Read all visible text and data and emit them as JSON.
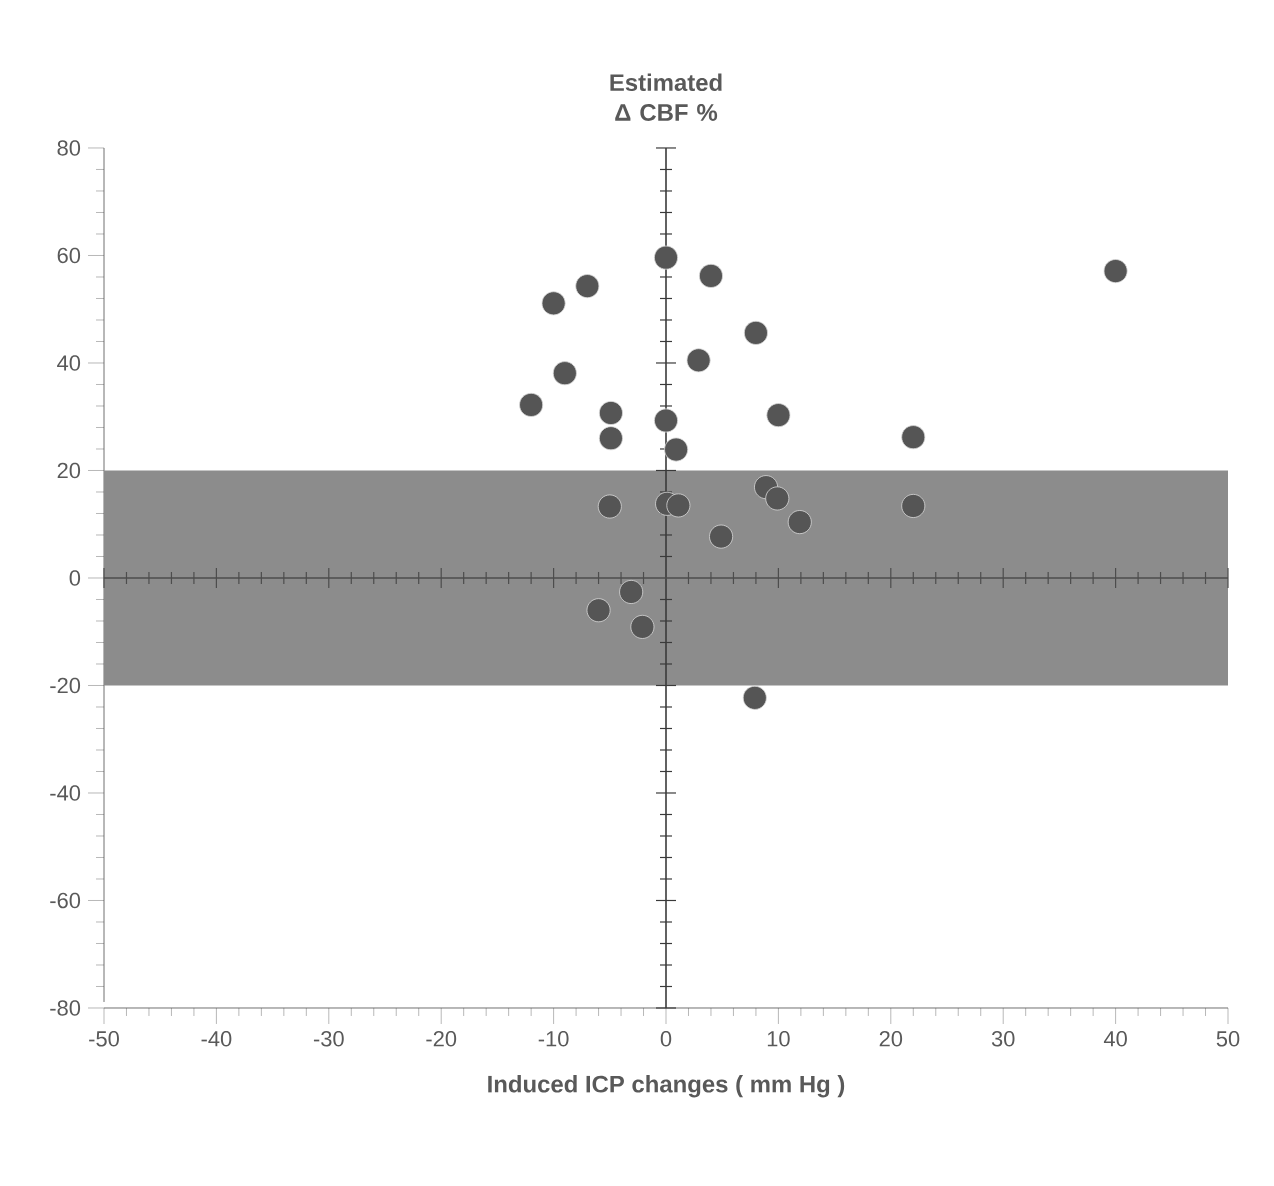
{
  "chart_data": {
    "type": "scatter",
    "ylabel": "Estimated Δ CBF %",
    "xlabel": "Induced ICP changes ( mm Hg )",
    "xlim": [
      -50,
      50
    ],
    "ylim": [
      -80,
      80
    ],
    "xticks": [
      -50,
      -40,
      -30,
      -20,
      -10,
      0,
      10,
      20,
      30,
      40,
      50
    ],
    "yticks": [
      -80,
      -60,
      -40,
      -20,
      0,
      20,
      40,
      60,
      80
    ],
    "marker": "circle",
    "grid": false,
    "bands": [
      {
        "axis": "y",
        "from": -20,
        "to": 20,
        "color": "#8c8c8c"
      }
    ],
    "ref_lines": [
      {
        "axis": "x",
        "value": 0,
        "color": "#3a3a3a"
      },
      {
        "axis": "y",
        "value": 0,
        "color": "#4d4d4d"
      }
    ],
    "series": [
      {
        "color": "#555555",
        "x": [
          0,
          4.0,
          -7.0,
          -10.0,
          8.0,
          2.9,
          -9.0,
          -12.0,
          -4.9,
          -4.9,
          0,
          10.0,
          0.9,
          -5.0,
          0.1,
          1.1,
          8.9,
          9.9,
          11.9,
          4.9,
          -3.1,
          -6.0,
          -2.1,
          7.9,
          40.0,
          22.0,
          22.0
        ],
        "values": [
          59.6,
          56.2,
          54.3,
          51.1,
          45.6,
          40.5,
          38.1,
          32.2,
          30.7,
          26.0,
          29.3,
          30.3,
          23.9,
          13.3,
          13.8,
          13.5,
          16.9,
          14.8,
          10.4,
          7.7,
          -2.6,
          -6.0,
          -9.1,
          -22.3,
          57.1,
          26.2,
          13.4
        ]
      }
    ]
  }
}
